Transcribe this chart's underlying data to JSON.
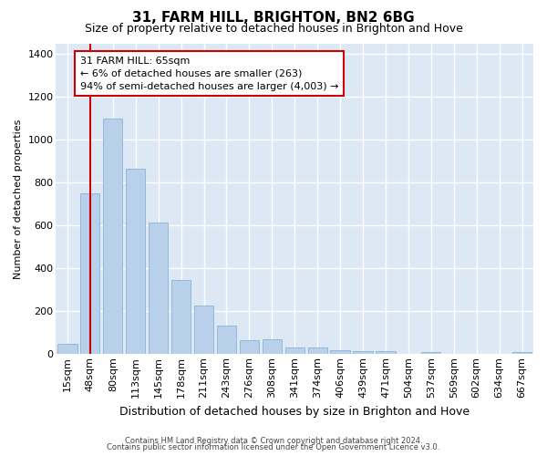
{
  "title": "31, FARM HILL, BRIGHTON, BN2 6BG",
  "subtitle": "Size of property relative to detached houses in Brighton and Hove",
  "xlabel": "Distribution of detached houses by size in Brighton and Hove",
  "ylabel": "Number of detached properties",
  "footnote1": "Contains HM Land Registry data © Crown copyright and database right 2024.",
  "footnote2": "Contains public sector information licensed under the Open Government Licence v3.0.",
  "bar_labels": [
    "15sqm",
    "48sqm",
    "80sqm",
    "113sqm",
    "145sqm",
    "178sqm",
    "211sqm",
    "243sqm",
    "276sqm",
    "308sqm",
    "341sqm",
    "374sqm",
    "406sqm",
    "439sqm",
    "471sqm",
    "504sqm",
    "537sqm",
    "569sqm",
    "602sqm",
    "634sqm",
    "667sqm"
  ],
  "bar_values": [
    50,
    750,
    1100,
    865,
    615,
    345,
    225,
    135,
    65,
    70,
    30,
    30,
    20,
    15,
    15,
    0,
    10,
    0,
    0,
    0,
    10
  ],
  "bar_color": "#b8d0ea",
  "bar_edge_color": "#8ab4d8",
  "bg_color": "#dde8f5",
  "grid_color": "#ffffff",
  "vline_x": 1,
  "vline_color": "#cc0000",
  "ann_line1": "31 FARM HILL: 65sqm",
  "ann_line2": "← 6% of detached houses are smaller (263)",
  "ann_line3": "94% of semi-detached houses are larger (4,003) →",
  "ylim": [
    0,
    1450
  ],
  "yticks": [
    0,
    200,
    400,
    600,
    800,
    1000,
    1200,
    1400
  ],
  "title_fontsize": 11,
  "subtitle_fontsize": 9,
  "ylabel_fontsize": 8,
  "xlabel_fontsize": 9,
  "tick_fontsize": 8,
  "ann_fontsize": 8,
  "footnote_fontsize": 6
}
